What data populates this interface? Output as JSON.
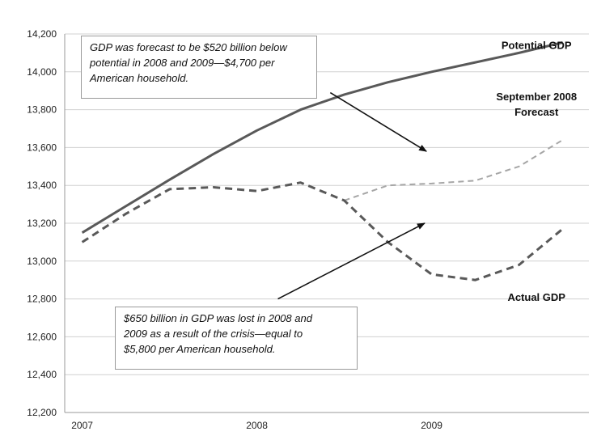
{
  "chart_data": {
    "type": "line",
    "title": "",
    "xlabel": "",
    "ylabel": "",
    "x_tick_labels": [
      "2007",
      "2008",
      "2009"
    ],
    "x_ticks": [
      2007,
      2008,
      2009
    ],
    "xlim": [
      2006.9,
      2009.9
    ],
    "ylim": [
      12200,
      14200
    ],
    "y_ticks": [
      12200,
      12400,
      12600,
      12800,
      13000,
      13200,
      13400,
      13600,
      13800,
      14000,
      14200
    ],
    "y_tick_labels": [
      "12,200",
      "12,400",
      "12,600",
      "12,800",
      "13,000",
      "13,200",
      "13,400",
      "13,600",
      "13,800",
      "14,000",
      "14,200"
    ],
    "grid": true,
    "legend": "none",
    "series": [
      {
        "name": "Potential GDP",
        "style": "solid",
        "color": "#595959",
        "x": [
          2007.0,
          2007.25,
          2007.5,
          2007.75,
          2008.0,
          2008.25,
          2008.5,
          2008.75,
          2009.0,
          2009.25,
          2009.5,
          2009.75
        ],
        "y": [
          13150,
          13290,
          13430,
          13565,
          13690,
          13800,
          13880,
          13945,
          14000,
          14050,
          14100,
          14155
        ]
      },
      {
        "name": "September 2008 Forecast",
        "style": "dashed-light",
        "color": "#a6a6a6",
        "x": [
          2008.5,
          2008.75,
          2009.0,
          2009.25,
          2009.5,
          2009.75
        ],
        "y": [
          13320,
          13400,
          13410,
          13425,
          13500,
          13640
        ]
      },
      {
        "name": "Actual GDP",
        "style": "dashed",
        "color": "#595959",
        "x": [
          2007.0,
          2007.25,
          2007.5,
          2007.75,
          2008.0,
          2008.25,
          2008.5,
          2008.75,
          2009.0,
          2009.25,
          2009.5,
          2009.75
        ],
        "y": [
          13100,
          13250,
          13380,
          13390,
          13370,
          13415,
          13320,
          13100,
          12930,
          12900,
          12980,
          13170
        ]
      }
    ],
    "series_labels": [
      {
        "lines": [
          "Potential GDP"
        ],
        "anchor_x": 2009.6,
        "anchor_y": 14120
      },
      {
        "lines": [
          "September 2008",
          "Forecast"
        ],
        "anchor_x": 2009.6,
        "anchor_y": 13850
      },
      {
        "lines": [
          "Actual GDP"
        ],
        "anchor_x": 2009.6,
        "anchor_y": 12790
      }
    ],
    "annotations": [
      {
        "id": "top",
        "text": "GDP was forecast to be $520 billion below potential in 2008  and 2009—$4,700 per American household.",
        "lines": [
          "GDP was forecast to be $520 billion below",
          "potential in 2008  and 2009—$4,700 per",
          "American household."
        ],
        "arrow_from": [
          2008.42,
          13890
        ],
        "arrow_to": [
          2008.97,
          13580
        ]
      },
      {
        "id": "bottom",
        "text": "$650 billion in GDP was lost in 2008  and 2009 as a result of the crisis—equal to $5,800 per American household.",
        "lines": [
          "$650 billion in GDP was lost in 2008  and",
          "2009 as a result of the crisis—equal to",
          "$5,800 per American household."
        ],
        "arrow_from": [
          2008.12,
          12800
        ],
        "arrow_to": [
          2008.96,
          13200
        ]
      }
    ]
  }
}
